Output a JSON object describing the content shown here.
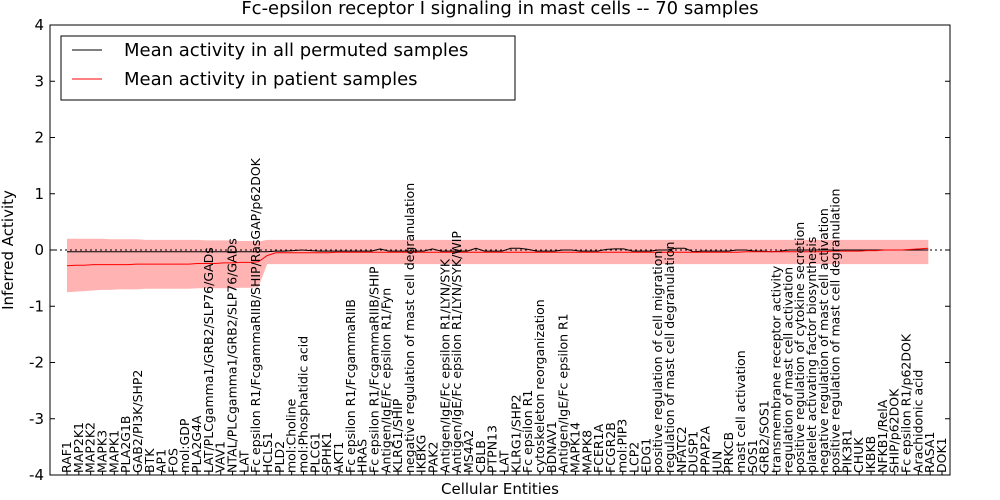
{
  "chart_data": {
    "type": "line",
    "title": "Fc-epsilon receptor I signaling in mast cells -- 70 samples",
    "xlabel": "Cellular Entities",
    "ylabel": "Inferred Activity",
    "ylim": [
      -4,
      4
    ],
    "yticks": [
      -4,
      -3,
      -2,
      -1,
      0,
      1,
      2,
      3,
      4
    ],
    "legend_position": "top-left",
    "x": [
      0,
      1,
      2,
      3,
      4,
      5,
      6,
      7,
      8,
      9,
      10,
      11,
      12,
      13,
      14,
      15,
      16,
      17,
      18,
      19,
      20,
      21,
      22,
      23,
      24,
      25,
      26,
      27,
      28,
      29,
      30,
      31,
      32,
      33,
      34,
      35,
      36,
      37,
      38,
      39,
      40,
      41,
      42,
      43,
      44,
      45,
      46,
      47,
      48,
      49,
      50,
      51,
      52,
      53,
      54,
      55,
      56,
      57,
      58,
      59,
      60,
      61,
      62,
      63,
      64,
      65,
      66,
      67,
      68,
      69,
      70,
      71,
      72,
      73,
      74,
      75,
      76,
      77,
      78,
      79,
      80,
      81,
      82,
      83,
      84,
      85,
      86,
      87,
      88,
      89,
      90,
      91,
      92,
      93,
      94,
      95,
      96,
      97,
      98,
      99
    ],
    "categories": [
      {
        "label": "RAF1",
        "x": 0
      },
      {
        "label": "MAP2K1",
        "x": 1
      },
      {
        "label": "MAP2K2",
        "x": 2
      },
      {
        "label": "MAPK3",
        "x": 3
      },
      {
        "label": "MAPK1",
        "x": 4
      },
      {
        "label": "PLA2G1B",
        "x": 5
      },
      {
        "label": "GAB2/PI3K/SHP2",
        "x": 6
      },
      {
        "label": "BTK",
        "x": 7
      },
      {
        "label": "AP1",
        "x": 8
      },
      {
        "label": "FOS",
        "x": 9
      },
      {
        "label": "mol:GDP",
        "x": 10
      },
      {
        "label": "PLA2G4A",
        "x": 11
      },
      {
        "label": "LAT/PLCgamma1/GRB2/SLP76/GADs",
        "x": 12
      },
      {
        "label": "VAV1",
        "x": 13
      },
      {
        "label": "NTAL/PLCgamma1/GRB2/SLP76/GADs",
        "x": 14
      },
      {
        "label": "LAT",
        "x": 15
      },
      {
        "label": "Fc epsilon R1/FcgammaRIIB/SHIP/RasGAP/p62DOK",
        "x": 16
      },
      {
        "label": "HCLS1",
        "x": 17
      },
      {
        "label": "PLD2",
        "x": 18
      },
      {
        "label": "mol:Choline",
        "x": 19
      },
      {
        "label": "mol:Phosphatidic acid",
        "x": 20
      },
      {
        "label": "PLCG1",
        "x": 21
      },
      {
        "label": "SPHK1",
        "x": 22
      },
      {
        "label": "AKT1",
        "x": 23
      },
      {
        "label": "Fc epsilon R1/FcgammaRIIB",
        "x": 24
      },
      {
        "label": "HRAS",
        "x": 25
      },
      {
        "label": "Fc epsilon R1/FcgammaRIIB/SHIP",
        "x": 26
      },
      {
        "label": "Antigen/IgE/Fc epsilon R1/Fyn",
        "x": 27
      },
      {
        "label": "KLRG1/SHIP",
        "x": 28
      },
      {
        "label": "negative regulation of mast cell degranulation",
        "x": 29
      },
      {
        "label": "IKBKG",
        "x": 30
      },
      {
        "label": "PAK2",
        "x": 31
      },
      {
        "label": "Antigen/IgE/Fc epsilon R1/LYN/SYK",
        "x": 32
      },
      {
        "label": "Antigen/IgE/Fc epsilon R1/LYN/SYK/WIP",
        "x": 33
      },
      {
        "label": "MS4A2",
        "x": 34
      },
      {
        "label": "CBLB",
        "x": 35
      },
      {
        "label": "PTPN13",
        "x": 36
      },
      {
        "label": "LAT",
        "x": 37
      },
      {
        "label": "KLRG1/SHP2",
        "x": 38
      },
      {
        "label": "Fc epsilon R1",
        "x": 39
      },
      {
        "label": "cytoskeleton reorganization",
        "x": 40
      },
      {
        "label": "BDNAV1",
        "x": 41
      },
      {
        "label": "Antigen/IgE/Fc epsilon R1",
        "x": 42
      },
      {
        "label": "MAPK14",
        "x": 43
      },
      {
        "label": "MAPK8",
        "x": 44
      },
      {
        "label": "FCER1A",
        "x": 45
      },
      {
        "label": "FCGR2B",
        "x": 46
      },
      {
        "label": "mol:PIP3",
        "x": 47
      },
      {
        "label": "LCP2",
        "x": 48
      },
      {
        "label": "EDG1",
        "x": 49
      },
      {
        "label": "positive regulation of cell migration",
        "x": 50
      },
      {
        "label": "regulation of mast cell degranulation",
        "x": 51
      },
      {
        "label": "NFATC2",
        "x": 52
      },
      {
        "label": "DUSP1",
        "x": 53
      },
      {
        "label": "PPAP2A",
        "x": 54
      },
      {
        "label": "JUN",
        "x": 55
      },
      {
        "label": "PRKCB",
        "x": 56
      },
      {
        "label": "mast cell activation",
        "x": 57
      },
      {
        "label": "SOS1",
        "x": 58
      },
      {
        "label": "GRB2/SOS1",
        "x": 59
      },
      {
        "label": "transmembrane receptor activity",
        "x": 60
      },
      {
        "label": "regulation of mast cell activation",
        "x": 61
      },
      {
        "label": "positive regulation of cytokine secretion",
        "x": 62
      },
      {
        "label": "platelet activating factor biosynthesis",
        "x": 63
      },
      {
        "label": "negative regulation of mast cell activation",
        "x": 64
      },
      {
        "label": "positive regulation of mast cell degranulation",
        "x": 65
      },
      {
        "label": "PIK3R1",
        "x": 66
      },
      {
        "label": "CHUK",
        "x": 67
      },
      {
        "label": "IKBKB",
        "x": 68
      },
      {
        "label": "NFKB1/RelA",
        "x": 69
      },
      {
        "label": "SHIP/p62DOK",
        "x": 70
      },
      {
        "label": "Fc epsilon R1/p62DOK",
        "x": 71
      },
      {
        "label": "Arachidonic acid",
        "x": 72
      },
      {
        "label": "RASA1",
        "x": 73
      },
      {
        "label": "DOK1",
        "x": 74
      }
    ],
    "series": [
      {
        "name": "Mean activity in all permuted samples",
        "color": "#000000",
        "values": [
          -0.03,
          -0.03,
          -0.03,
          -0.03,
          -0.03,
          -0.03,
          -0.03,
          -0.03,
          -0.03,
          -0.03,
          -0.03,
          -0.03,
          -0.03,
          -0.03,
          -0.03,
          -0.03,
          -0.03,
          -0.03,
          -0.03,
          -0.03,
          -0.03,
          -0.03,
          -0.03,
          -0.03,
          -0.02,
          -0.02,
          -0.01,
          0.0,
          -0.01,
          -0.02,
          -0.02,
          -0.02,
          -0.02,
          -0.02,
          -0.02,
          -0.02,
          0.02,
          -0.02,
          -0.02,
          -0.02,
          -0.02,
          -0.02,
          0.02,
          -0.02,
          -0.02,
          -0.02,
          -0.02,
          0.03,
          -0.02,
          -0.02,
          -0.02,
          0.03,
          0.03,
          0.01,
          -0.02,
          -0.02,
          -0.02,
          0.0,
          0.0,
          -0.02,
          -0.02,
          -0.02,
          0.01,
          0.02,
          0.02,
          -0.02,
          -0.02,
          -0.02,
          0.0,
          0.0,
          0.03,
          0.03,
          -0.03,
          -0.02,
          -0.02,
          -0.02,
          -0.02,
          0.0,
          0.0,
          -0.02,
          -0.02,
          -0.03,
          -0.02,
          0.0,
          0.0,
          0.0,
          0.0,
          0.0,
          0.0,
          0.0,
          0.0,
          0.0,
          0.0,
          0.0,
          0.0,
          0.0,
          0.0,
          0.0,
          0.0,
          0.0
        ]
      },
      {
        "name": "Mean activity in patient samples",
        "color": "#ff0000",
        "values": [
          -0.28,
          -0.27,
          -0.27,
          -0.26,
          -0.26,
          -0.26,
          -0.26,
          -0.26,
          -0.25,
          -0.25,
          -0.25,
          -0.25,
          -0.25,
          -0.25,
          -0.25,
          -0.24,
          -0.24,
          -0.24,
          -0.23,
          -0.23,
          -0.22,
          -0.22,
          -0.21,
          -0.1,
          -0.05,
          -0.05,
          -0.05,
          -0.05,
          -0.05,
          -0.05,
          -0.05,
          -0.04,
          -0.04,
          -0.04,
          -0.04,
          -0.04,
          -0.04,
          -0.04,
          -0.04,
          -0.04,
          -0.04,
          -0.04,
          -0.04,
          -0.04,
          -0.04,
          -0.04,
          -0.04,
          -0.04,
          -0.04,
          -0.04,
          -0.04,
          -0.04,
          -0.04,
          -0.04,
          -0.04,
          -0.04,
          -0.04,
          -0.04,
          -0.04,
          -0.04,
          -0.04,
          -0.04,
          -0.04,
          -0.04,
          -0.04,
          -0.04,
          -0.04,
          -0.04,
          -0.04,
          -0.04,
          -0.04,
          -0.04,
          -0.04,
          -0.04,
          -0.04,
          -0.04,
          -0.04,
          -0.04,
          -0.03,
          -0.03,
          -0.03,
          -0.03,
          -0.03,
          -0.03,
          -0.03,
          -0.03,
          -0.03,
          -0.03,
          -0.02,
          -0.02,
          -0.02,
          -0.02,
          -0.01,
          -0.01,
          0.0,
          0.0,
          0.0,
          0.01,
          0.02,
          0.03
        ]
      }
    ],
    "band_upper": [
      0.2,
      0.2,
      0.2,
      0.2,
      0.2,
      0.19,
      0.19,
      0.19,
      0.19,
      0.18,
      0.18,
      0.18,
      0.18,
      0.18,
      0.18,
      0.18,
      0.17,
      0.17,
      0.17,
      0.17,
      0.16,
      0.16,
      0.15,
      0.18,
      0.18,
      0.18,
      0.18,
      0.18,
      0.18,
      0.18,
      0.18,
      0.18,
      0.18,
      0.18,
      0.18,
      0.18,
      0.18,
      0.18,
      0.18,
      0.18,
      0.18,
      0.18,
      0.18,
      0.18,
      0.18,
      0.18,
      0.18,
      0.18,
      0.18,
      0.18,
      0.18,
      0.18,
      0.18,
      0.18,
      0.18,
      0.18,
      0.18,
      0.18,
      0.18,
      0.18,
      0.18,
      0.18,
      0.18,
      0.18,
      0.18,
      0.18,
      0.18,
      0.18,
      0.18,
      0.18,
      0.18,
      0.18,
      0.18,
      0.18,
      0.18,
      0.18,
      0.18,
      0.18,
      0.18,
      0.18,
      0.18,
      0.18,
      0.18,
      0.18,
      0.18,
      0.18,
      0.18,
      0.18,
      0.18,
      0.18,
      0.18,
      0.18,
      0.18,
      0.18,
      0.18,
      0.18,
      0.18,
      0.18,
      0.18,
      0.18
    ],
    "band_lower": [
      -0.75,
      -0.74,
      -0.73,
      -0.72,
      -0.71,
      -0.71,
      -0.7,
      -0.7,
      -0.7,
      -0.69,
      -0.69,
      -0.69,
      -0.69,
      -0.69,
      -0.69,
      -0.68,
      -0.68,
      -0.68,
      -0.68,
      -0.68,
      -0.67,
      -0.67,
      -0.66,
      -0.25,
      -0.25,
      -0.25,
      -0.25,
      -0.25,
      -0.25,
      -0.25,
      -0.25,
      -0.25,
      -0.25,
      -0.25,
      -0.25,
      -0.25,
      -0.25,
      -0.25,
      -0.25,
      -0.25,
      -0.25,
      -0.25,
      -0.25,
      -0.25,
      -0.25,
      -0.25,
      -0.25,
      -0.25,
      -0.25,
      -0.25,
      -0.25,
      -0.25,
      -0.25,
      -0.25,
      -0.25,
      -0.25,
      -0.25,
      -0.25,
      -0.25,
      -0.25,
      -0.25,
      -0.25,
      -0.25,
      -0.25,
      -0.25,
      -0.25,
      -0.25,
      -0.25,
      -0.25,
      -0.25,
      -0.25,
      -0.25,
      -0.25,
      -0.25,
      -0.25,
      -0.25,
      -0.25,
      -0.25,
      -0.25,
      -0.25,
      -0.25,
      -0.25,
      -0.25,
      -0.25,
      -0.25,
      -0.25,
      -0.25,
      -0.25,
      -0.25,
      -0.25,
      -0.25,
      -0.25,
      -0.25,
      -0.25,
      -0.25,
      -0.25,
      -0.25,
      -0.25,
      -0.25,
      -0.25
    ],
    "band_color": "#ff9999"
  }
}
